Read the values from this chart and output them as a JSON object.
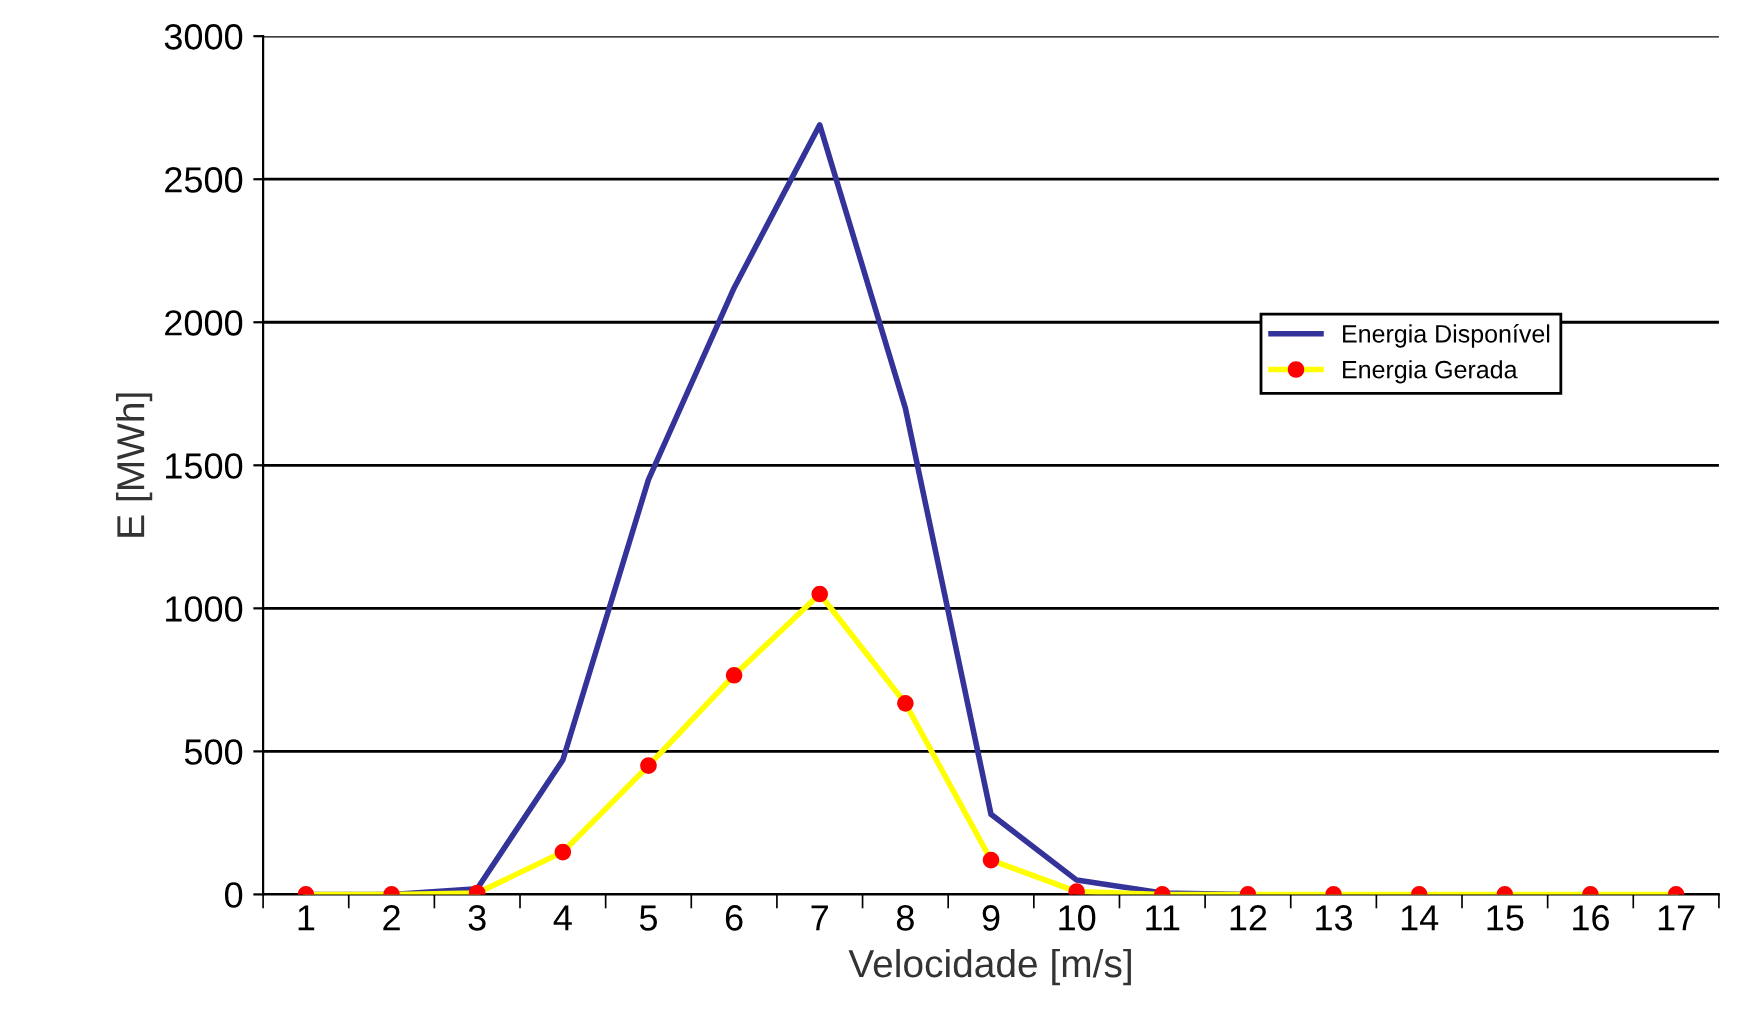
{
  "chart_data": {
    "type": "line",
    "xlabel": "Velocidade [m/s]",
    "ylabel": "E [MWh]",
    "categories": [
      "1",
      "2",
      "3",
      "4",
      "5",
      "6",
      "7",
      "8",
      "9",
      "10",
      "11",
      "12",
      "13",
      "14",
      "15",
      "16",
      "17"
    ],
    "series": [
      {
        "name": "Energia Disponível",
        "color": "#333399",
        "marker": "none",
        "values": [
          0,
          0,
          20,
          470,
          1450,
          2120,
          2690,
          1700,
          280,
          50,
          5,
          0,
          null,
          null,
          null,
          null,
          null
        ]
      },
      {
        "name": "Energia Gerada",
        "color": "#ffff00",
        "marker": "circle",
        "values": [
          0,
          0,
          5,
          148,
          450,
          766,
          1050,
          668,
          120,
          10,
          0,
          0,
          0,
          0,
          0,
          0,
          0
        ]
      }
    ],
    "ylim": [
      0,
      3000
    ],
    "yticks": [
      0,
      500,
      1000,
      1500,
      2000,
      2500,
      3000
    ],
    "grid": "y",
    "legend": "right"
  }
}
